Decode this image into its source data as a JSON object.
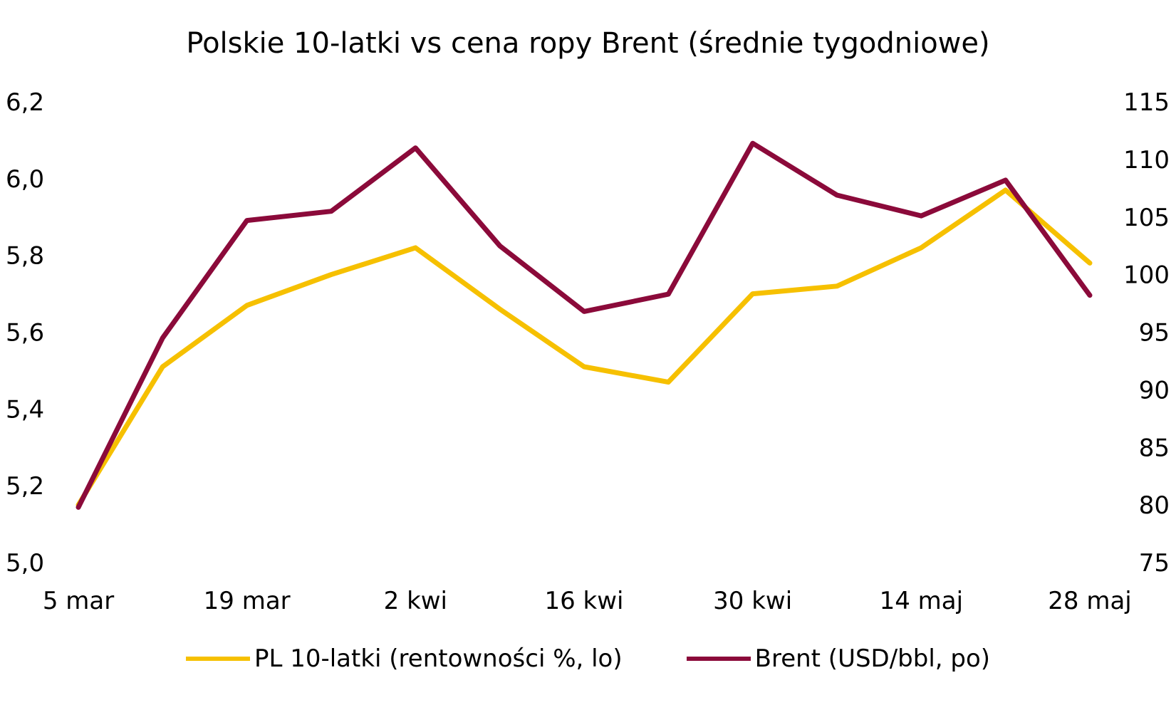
{
  "chart_data": {
    "type": "line",
    "title": "Polskie 10-latki vs cena ropy Brent (średnie tygodniowe)",
    "x": [
      "5 mar",
      "12 mar",
      "19 mar",
      "26 mar",
      "2 kwi",
      "9 kwi",
      "16 kwi",
      "23 kwi",
      "30 kwi",
      "7 maj",
      "14 maj",
      "21 maj",
      "28 maj"
    ],
    "x_tick_labels": [
      "5 mar",
      "19 mar",
      "2 kwi",
      "16 kwi",
      "30 kwi",
      "14 maj",
      "28 maj"
    ],
    "y_left": {
      "ylim": [
        5.0,
        6.2
      ],
      "ticks": [
        "5,0",
        "5,2",
        "5,4",
        "5,6",
        "5,8",
        "6,0",
        "6,2"
      ]
    },
    "y_right": {
      "ylim": [
        75,
        115
      ],
      "ticks": [
        "75",
        "80",
        "85",
        "90",
        "95",
        "100",
        "105",
        "110",
        "115"
      ]
    },
    "grid": false,
    "legend_position": "bottom",
    "series": [
      {
        "name": "PL 10-latki (rentowności %, lo)",
        "axis": "left",
        "color": "#F6C000",
        "values": [
          5.15,
          5.51,
          5.67,
          5.75,
          5.82,
          5.66,
          5.51,
          5.47,
          5.7,
          5.72,
          5.82,
          5.97,
          5.78
        ]
      },
      {
        "name": "Brent (USD/bbl, po)",
        "axis": "right",
        "color": "#8B0A3A",
        "values": [
          79.8,
          94.5,
          104.7,
          105.5,
          111.0,
          102.5,
          96.8,
          98.3,
          111.4,
          106.9,
          105.1,
          108.2,
          98.2
        ]
      }
    ]
  }
}
